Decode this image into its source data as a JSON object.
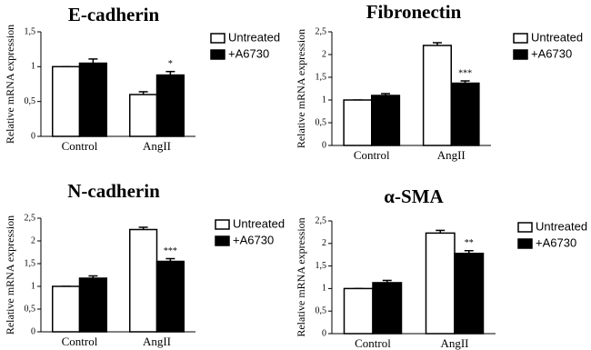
{
  "chart_data": [
    {
      "type": "bar",
      "title": "E-cadherin",
      "y_label": "Relative mRNA expression",
      "categories": [
        "Control",
        "AngII"
      ],
      "series": [
        {
          "name": "Untreated",
          "color": "#ffffff",
          "values": [
            1.0,
            0.6
          ],
          "errors": [
            0.0,
            0.04
          ],
          "annotations": [
            null,
            null
          ]
        },
        {
          "name": "+A6730",
          "color": "#000000",
          "values": [
            1.05,
            0.88
          ],
          "errors": [
            0.06,
            0.05
          ],
          "annotations": [
            null,
            "*"
          ]
        }
      ],
      "ylim": [
        0,
        1.5
      ],
      "yticks": [
        0,
        {
          "value": 0.5,
          "label": "0,5"
        },
        1,
        {
          "value": 1.5,
          "label": "1,5"
        }
      ]
    },
    {
      "type": "bar",
      "title": "Fibronectin",
      "y_label": "Relative mRNA expression",
      "categories": [
        "Control",
        "AngII"
      ],
      "series": [
        {
          "name": "Untreated",
          "color": "#ffffff",
          "values": [
            1.0,
            2.2
          ],
          "errors": [
            0.0,
            0.06
          ],
          "annotations": [
            null,
            null
          ]
        },
        {
          "name": "+A6730",
          "color": "#000000",
          "values": [
            1.1,
            1.37
          ],
          "errors": [
            0.04,
            0.05
          ],
          "annotations": [
            null,
            "***"
          ]
        }
      ],
      "ylim": [
        0,
        2.5
      ],
      "yticks": [
        0,
        {
          "value": 0.5,
          "label": "0,5"
        },
        1,
        {
          "value": 1.5,
          "label": "1,5"
        },
        2,
        {
          "value": 2.5,
          "label": "2,5"
        }
      ]
    },
    {
      "type": "bar",
      "title": "N-cadherin",
      "y_label": "Relative mRNA expression",
      "categories": [
        "Control",
        "AngII"
      ],
      "series": [
        {
          "name": "Untreated",
          "color": "#ffffff",
          "values": [
            1.0,
            2.25
          ],
          "errors": [
            0.0,
            0.05
          ],
          "annotations": [
            null,
            null
          ]
        },
        {
          "name": "+A6730",
          "color": "#000000",
          "values": [
            1.18,
            1.55
          ],
          "errors": [
            0.05,
            0.06
          ],
          "annotations": [
            null,
            "***"
          ]
        }
      ],
      "ylim": [
        0,
        2.5
      ],
      "yticks": [
        0,
        {
          "value": 0.5,
          "label": "0,5"
        },
        1,
        {
          "value": 1.5,
          "label": "1,5"
        },
        2,
        {
          "value": 2.5,
          "label": "2,5"
        }
      ]
    },
    {
      "type": "bar",
      "title": "α-SMA",
      "y_label": "Relative mRNA expression",
      "categories": [
        "Control",
        "AngII"
      ],
      "series": [
        {
          "name": "Untreated",
          "color": "#ffffff",
          "values": [
            1.0,
            2.23
          ],
          "errors": [
            0.0,
            0.06
          ],
          "annotations": [
            null,
            null
          ]
        },
        {
          "name": "+A6730",
          "color": "#000000",
          "values": [
            1.13,
            1.78
          ],
          "errors": [
            0.05,
            0.06
          ],
          "annotations": [
            null,
            "**"
          ]
        }
      ],
      "ylim": [
        0,
        2.5
      ],
      "yticks": [
        0,
        {
          "value": 0.5,
          "label": "0,5"
        },
        1,
        {
          "value": 1.5,
          "label": "1,5"
        },
        2,
        {
          "value": 2.5,
          "label": "2,5"
        }
      ]
    }
  ]
}
